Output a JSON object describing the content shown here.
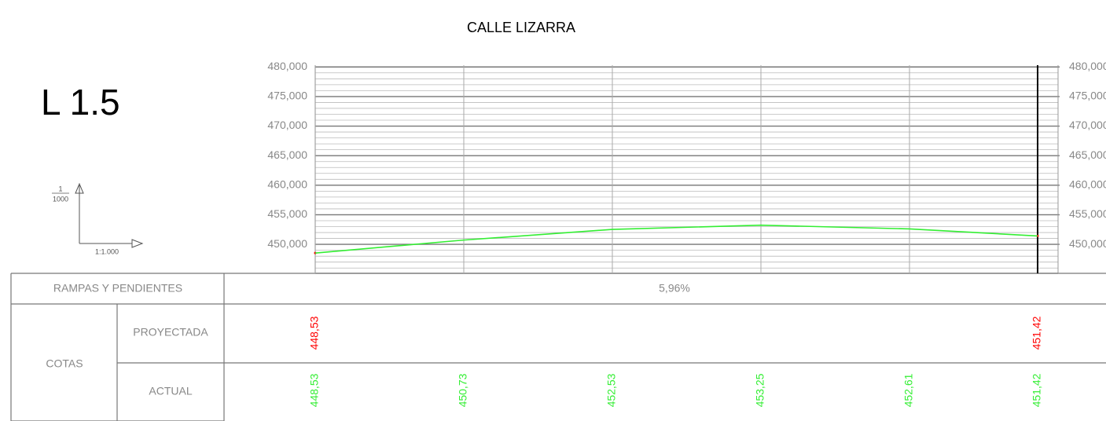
{
  "chart_data": {
    "type": "line",
    "title": "CALLE LIZARRA",
    "label": "L 1.5",
    "scale": {
      "vertical_num": "1",
      "vertical_den": "1000",
      "horizontal": "1:1.000"
    },
    "x": [
      0,
      20,
      40,
      60,
      80,
      97.25
    ],
    "xlim": [
      0,
      100
    ],
    "ylim": [
      445.1,
      480.3
    ],
    "yticks": [
      {
        "value": 450,
        "label": "450,000"
      },
      {
        "value": 455,
        "label": "455,000"
      },
      {
        "value": 460,
        "label": "460,000"
      },
      {
        "value": 465,
        "label": "465,000"
      },
      {
        "value": 470,
        "label": "470,000"
      },
      {
        "value": 475,
        "label": "475,000"
      },
      {
        "value": 480,
        "label": "480,000"
      }
    ],
    "grid": true,
    "series": [
      {
        "name": "PROYECTADA",
        "color": "#ff0000",
        "values": [
          448.53,
          null,
          null,
          null,
          null,
          451.42
        ],
        "value_labels": [
          "448,53",
          null,
          null,
          null,
          null,
          "451,42"
        ]
      },
      {
        "name": "ACTUAL",
        "color": "#33ee33",
        "values": [
          448.53,
          450.73,
          452.53,
          453.25,
          452.61,
          451.42
        ],
        "value_labels": [
          "448,53",
          "450,73",
          "452,53",
          "453,25",
          "452,61",
          "451,42"
        ]
      }
    ],
    "table": {
      "ramp_header": "RAMPAS Y PENDIENTES",
      "ramp": 5.96,
      "ramp_label": "5,96%",
      "cotas_header": "COTAS"
    }
  }
}
